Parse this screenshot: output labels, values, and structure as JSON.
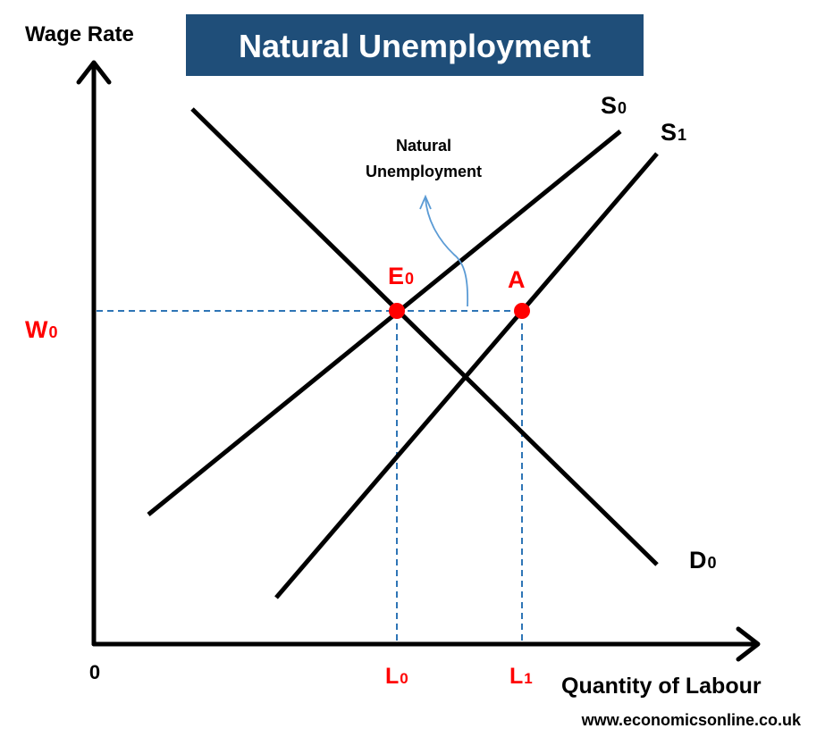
{
  "title": "Natural Unemployment",
  "axes": {
    "y_label": "Wage Rate",
    "x_label": "Quantity of Labour",
    "origin_label": "0"
  },
  "curves": {
    "supply_0": "S",
    "supply_0_sub": "0",
    "supply_1": "S",
    "supply_1_sub": "1",
    "demand_0": "D",
    "demand_0_sub": "0"
  },
  "points": {
    "equilibrium": "E",
    "equilibrium_sub": "0",
    "point_a": "A"
  },
  "levels": {
    "wage": "W",
    "wage_sub": "0",
    "labour_0": "L",
    "labour_0_sub": "0",
    "labour_1": "L",
    "labour_1_sub": "1"
  },
  "annotation": {
    "line1": "Natural",
    "line2": "Unemployment"
  },
  "source": "www.economicsonline.co.uk",
  "colors": {
    "title_bg": "#1f4e79",
    "title_text": "#ffffff",
    "highlight": "#ff0000",
    "guide": "#2e75b6",
    "annotation_arrow": "#5b9bd5",
    "ink": "#000000"
  }
}
